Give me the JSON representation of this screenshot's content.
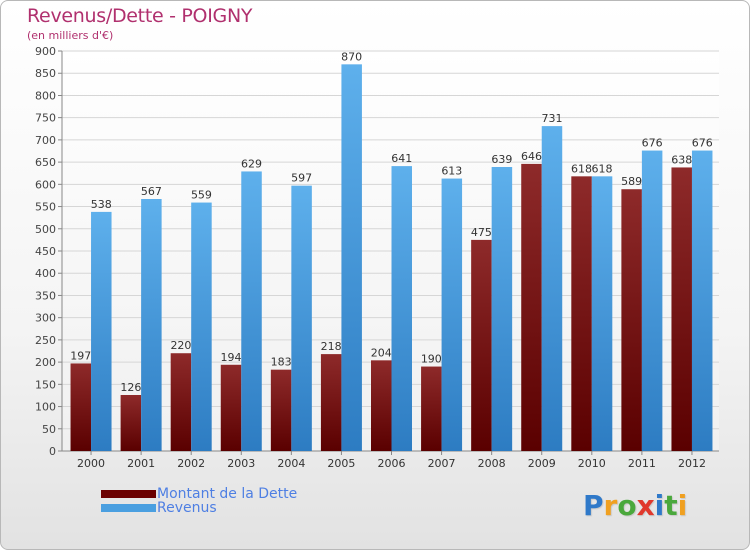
{
  "header": {
    "title": "Revenus/Dette - POIGNY",
    "subtitle": "(en milliers d'€)"
  },
  "legend": {
    "items": [
      {
        "label": "Montant de la Dette",
        "color": "#6b0000"
      },
      {
        "label": "Revenus",
        "color": "#4a9fe0"
      }
    ]
  },
  "logo": {
    "text": "Proxiti",
    "letters": [
      {
        "ch": "P",
        "color": "#2f79c9"
      },
      {
        "ch": "r",
        "color": "#f0a020"
      },
      {
        "ch": "o",
        "color": "#4aa83c"
      },
      {
        "ch": "x",
        "color": "#e0382c"
      },
      {
        "ch": "i",
        "color": "#2f79c9"
      },
      {
        "ch": "t",
        "color": "#4aa83c"
      },
      {
        "ch": "i",
        "color": "#f0a020"
      }
    ]
  },
  "chart_data": {
    "type": "bar",
    "title": "Revenus/Dette - POIGNY",
    "subtitle": "(en milliers d'€)",
    "categories": [
      "2000",
      "2001",
      "2002",
      "2003",
      "2004",
      "2005",
      "2006",
      "2007",
      "2008",
      "2009",
      "2010",
      "2011",
      "2012"
    ],
    "series": [
      {
        "name": "Montant de la Dette",
        "color": "#6b0000",
        "values": [
          197,
          126,
          220,
          194,
          183,
          218,
          204,
          190,
          475,
          646,
          618,
          589,
          638
        ]
      },
      {
        "name": "Revenus",
        "color": "#4a9fe0",
        "values": [
          538,
          567,
          559,
          629,
          597,
          870,
          641,
          613,
          639,
          731,
          618,
          676,
          676
        ]
      }
    ],
    "ylim": [
      0,
      900
    ],
    "yticks": [
      0,
      50,
      100,
      150,
      200,
      250,
      300,
      350,
      400,
      450,
      500,
      550,
      600,
      650,
      700,
      750,
      800,
      850,
      900
    ],
    "grid": true,
    "legend_position": "bottom-left"
  }
}
